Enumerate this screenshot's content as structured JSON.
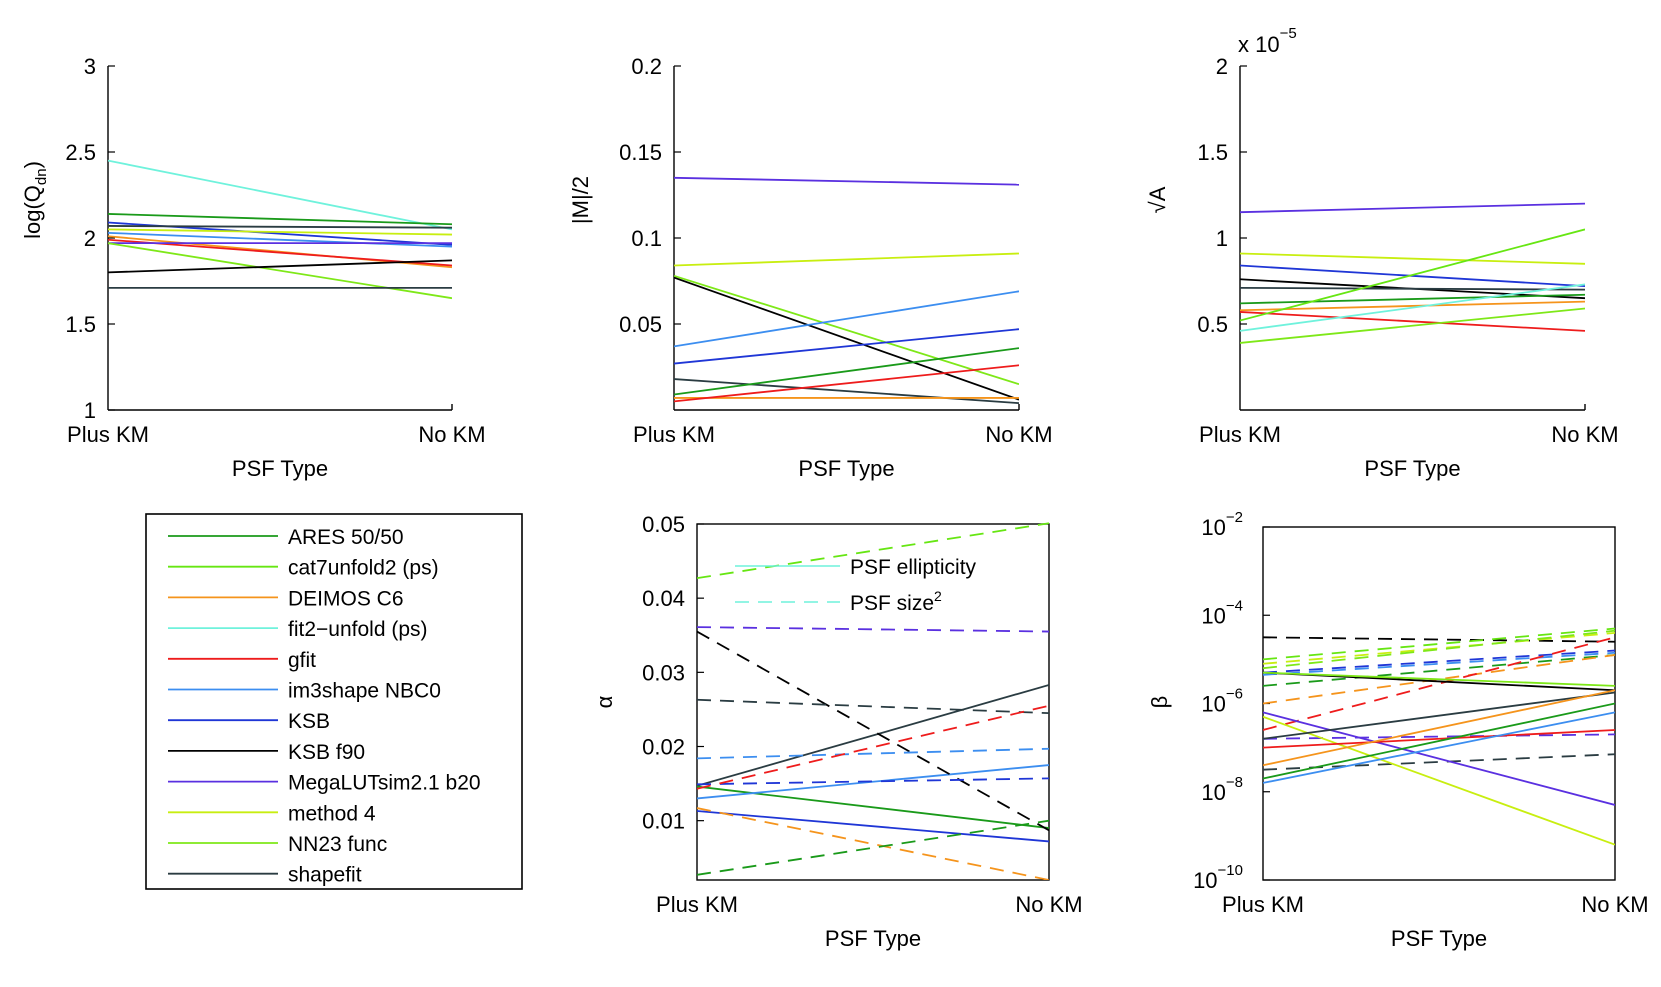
{
  "colors": {
    "ARES 50/50": "#1a9a1a",
    "cat7unfold2 (ps)": "#66e612",
    "DEIMOS C6": "#f5941c",
    "fit2-unfold (ps)": "#6ff2dc",
    "gfit": "#ee1c1c",
    "im3shape NBC0": "#3c8ef0",
    "KSB": "#1f36d6",
    "KSB f90": "#000000",
    "MegaLUTsim2.1 b20": "#5a30e0",
    "method 4": "#c8ee10",
    "NN23 func": "#7ee818",
    "shapefit": "#2a3c42"
  },
  "legend": {
    "entries": [
      "ARES 50/50",
      "cat7unfold2 (ps)",
      "DEIMOS C6",
      "fit2−unfold (ps)",
      "gfit",
      "im3shape NBC0",
      "KSB",
      "KSB f90",
      "MegaLUTsim2.1 b20",
      "method 4",
      "NN23 func",
      "shapefit"
    ],
    "keys": [
      "ARES 50/50",
      "cat7unfold2 (ps)",
      "DEIMOS C6",
      "fit2-unfold (ps)",
      "gfit",
      "im3shape NBC0",
      "KSB",
      "KSB f90",
      "MegaLUTsim2.1 b20",
      "method 4",
      "NN23 func",
      "shapefit"
    ]
  },
  "chart_data": [
    {
      "id": "qdn",
      "type": "line",
      "xlabel": "PSF Type",
      "ylabel_main": "log(Q",
      "ylabel_sub": "dn",
      "ylabel_end": ")",
      "categories": [
        "Plus KM",
        "No KM"
      ],
      "ylim": [
        1,
        3
      ],
      "yticks": [
        1,
        1.5,
        2,
        2.5,
        3
      ],
      "ytick_labels": [
        "1",
        "1.5",
        "2",
        "2.5",
        "3"
      ],
      "series": [
        {
          "name": "fit2-unfold (ps)",
          "values": [
            2.45,
            2.05
          ]
        },
        {
          "name": "ARES 50/50",
          "values": [
            2.14,
            2.08
          ]
        },
        {
          "name": "KSB",
          "values": [
            2.09,
            1.96
          ]
        },
        {
          "name": "shapefit",
          "values": [
            2.07,
            2.06
          ]
        },
        {
          "name": "method 4",
          "values": [
            2.05,
            2.02
          ]
        },
        {
          "name": "im3shape NBC0",
          "values": [
            2.03,
            1.95
          ]
        },
        {
          "name": "DEIMOS C6",
          "values": [
            2.01,
            1.83
          ]
        },
        {
          "name": "gfit",
          "values": [
            1.99,
            1.84
          ]
        },
        {
          "name": "MegaLUTsim2.1 b20",
          "values": [
            1.97,
            1.97
          ]
        },
        {
          "name": "NN23 func",
          "values": [
            1.97,
            1.65
          ]
        },
        {
          "name": "KSB f90",
          "values": [
            1.8,
            1.87
          ]
        },
        {
          "name": "shapefit",
          "values": [
            1.71,
            1.71
          ]
        }
      ]
    },
    {
      "id": "m",
      "type": "line",
      "xlabel": "PSF Type",
      "ylabel_main": "|M|/2",
      "categories": [
        "Plus KM",
        "No KM"
      ],
      "ylim": [
        0,
        0.2
      ],
      "yticks": [
        0.05,
        0.1,
        0.15,
        0.2
      ],
      "ytick_labels": [
        "0.05",
        "0.1",
        "0.15",
        "0.2"
      ],
      "series": [
        {
          "name": "MegaLUTsim2.1 b20",
          "values": [
            0.135,
            0.131
          ]
        },
        {
          "name": "method 4",
          "values": [
            0.084,
            0.091
          ]
        },
        {
          "name": "NN23 func",
          "values": [
            0.078,
            0.015
          ]
        },
        {
          "name": "KSB f90",
          "values": [
            0.077,
            0.006
          ]
        },
        {
          "name": "im3shape NBC0",
          "values": [
            0.037,
            0.069
          ]
        },
        {
          "name": "KSB",
          "values": [
            0.027,
            0.047
          ]
        },
        {
          "name": "shapefit",
          "values": [
            0.018,
            0.004
          ]
        },
        {
          "name": "ARES 50/50",
          "values": [
            0.009,
            0.036
          ]
        },
        {
          "name": "DEIMOS C6",
          "values": [
            0.007,
            0.007
          ]
        },
        {
          "name": "gfit",
          "values": [
            0.005,
            0.026
          ]
        }
      ]
    },
    {
      "id": "a",
      "type": "line",
      "xlabel": "PSF Type",
      "ylabel_main": "√A",
      "exponent_base": "x 10",
      "exponent_power": "−5",
      "categories": [
        "Plus KM",
        "No KM"
      ],
      "ylim": [
        0,
        2
      ],
      "yticks": [
        0.5,
        1,
        1.5,
        2
      ],
      "ytick_labels": [
        "0.5",
        "1",
        "1.5",
        "2"
      ],
      "series": [
        {
          "name": "MegaLUTsim2.1 b20",
          "values": [
            1.15,
            1.2
          ]
        },
        {
          "name": "method 4",
          "values": [
            0.91,
            0.85
          ]
        },
        {
          "name": "KSB",
          "values": [
            0.84,
            0.72
          ]
        },
        {
          "name": "KSB f90",
          "values": [
            0.76,
            0.65
          ]
        },
        {
          "name": "shapefit",
          "values": [
            0.71,
            0.7
          ]
        },
        {
          "name": "ARES 50/50",
          "values": [
            0.62,
            0.67
          ]
        },
        {
          "name": "DEIMOS C6",
          "values": [
            0.58,
            0.63
          ]
        },
        {
          "name": "gfit",
          "values": [
            0.57,
            0.46
          ]
        },
        {
          "name": "cat7unfold2 (ps)",
          "values": [
            0.52,
            1.05
          ]
        },
        {
          "name": "fit2-unfold (ps)",
          "values": [
            0.46,
            0.73
          ]
        },
        {
          "name": "NN23 func",
          "values": [
            0.39,
            0.59
          ]
        }
      ]
    },
    {
      "id": "alpha",
      "type": "line",
      "xlabel": "PSF Type",
      "ylabel_main": "α",
      "categories": [
        "Plus KM",
        "No KM"
      ],
      "ylim": [
        0.002,
        0.05
      ],
      "yticks": [
        0.01,
        0.02,
        0.03,
        0.04,
        0.05
      ],
      "ytick_labels": [
        "0.01",
        "0.02",
        "0.03",
        "0.04",
        "0.05"
      ],
      "inner_legend": {
        "ellipticity_label": "PSF ellipticity",
        "size_label": "PSF size",
        "size_superscript": "2"
      },
      "series": [
        {
          "name": "shapefit",
          "style": "solid",
          "values": [
            0.0147,
            0.0283
          ]
        },
        {
          "name": "ARES 50/50",
          "style": "solid",
          "values": [
            0.0146,
            0.009
          ]
        },
        {
          "name": "im3shape NBC0",
          "style": "solid",
          "values": [
            0.013,
            0.0175
          ]
        },
        {
          "name": "KSB",
          "style": "solid",
          "values": [
            0.0113,
            0.0072
          ]
        },
        {
          "name": "cat7unfold2 (ps)",
          "style": "dashed",
          "values": [
            0.0427,
            0.0501
          ]
        },
        {
          "name": "MegaLUTsim2.1 b20",
          "style": "dashed",
          "values": [
            0.0361,
            0.0355
          ]
        },
        {
          "name": "KSB f90",
          "style": "dashed",
          "values": [
            0.0355,
            0.0087
          ]
        },
        {
          "name": "shapefit",
          "style": "dashed",
          "values": [
            0.0263,
            0.0245
          ]
        },
        {
          "name": "im3shape NBC0",
          "style": "dashed",
          "values": [
            0.0184,
            0.0197
          ]
        },
        {
          "name": "KSB",
          "style": "dashed",
          "values": [
            0.0149,
            0.0157
          ]
        },
        {
          "name": "gfit",
          "style": "dashed",
          "values": [
            0.0143,
            0.0255
          ]
        },
        {
          "name": "DEIMOS C6",
          "style": "dashed",
          "values": [
            0.0117,
            0.002
          ]
        },
        {
          "name": "ARES 50/50",
          "style": "dashed",
          "values": [
            0.0027,
            0.01
          ]
        }
      ]
    },
    {
      "id": "beta",
      "type": "line",
      "yscale": "log",
      "xlabel": "PSF Type",
      "ylabel_main": "β",
      "categories": [
        "Plus KM",
        "No KM"
      ],
      "ylim_log10": [
        -10,
        -2
      ],
      "yticks_log10": [
        -10,
        -8,
        -6,
        -4,
        -2
      ],
      "ytick_base": "10",
      "ytick_powers": [
        "−10",
        "−8",
        "−6",
        "−4",
        "−2"
      ],
      "series": [
        {
          "name": "KSB f90",
          "style": "dashed",
          "log10_values": [
            -4.5,
            -4.6
          ]
        },
        {
          "name": "cat7unfold2 (ps)",
          "style": "dashed",
          "log10_values": [
            -5.0,
            -4.3
          ]
        },
        {
          "name": "method 4",
          "style": "dashed",
          "log10_values": [
            -5.1,
            -4.4
          ]
        },
        {
          "name": "NN23 func",
          "style": "dashed",
          "log10_values": [
            -5.2,
            -4.35
          ]
        },
        {
          "name": "KSB",
          "style": "dashed",
          "log10_values": [
            -5.3,
            -4.8
          ]
        },
        {
          "name": "im3shape NBC0",
          "style": "dashed",
          "log10_values": [
            -5.35,
            -4.85
          ]
        },
        {
          "name": "ARES 50/50",
          "style": "dashed",
          "log10_values": [
            -5.6,
            -4.9
          ]
        },
        {
          "name": "DEIMOS C6",
          "style": "dashed",
          "log10_values": [
            -6.0,
            -4.9
          ]
        },
        {
          "name": "gfit",
          "style": "dashed",
          "log10_values": [
            -6.6,
            -4.5
          ]
        },
        {
          "name": "MegaLUTsim2.1 b20",
          "style": "dashed",
          "log10_values": [
            -6.8,
            -6.7
          ]
        },
        {
          "name": "shapefit",
          "style": "dashed",
          "log10_values": [
            -7.5,
            -7.15
          ]
        },
        {
          "name": "KSB f90",
          "style": "solid",
          "log10_values": [
            -5.3,
            -5.7
          ]
        },
        {
          "name": "NN23 func",
          "style": "solid",
          "log10_values": [
            -5.3,
            -5.6
          ]
        },
        {
          "name": "MegaLUTsim2.1 b20",
          "style": "solid",
          "log10_values": [
            -6.2,
            -8.3
          ]
        },
        {
          "name": "method 4",
          "style": "solid",
          "log10_values": [
            -6.3,
            -9.2
          ]
        },
        {
          "name": "shapefit",
          "style": "solid",
          "log10_values": [
            -6.8,
            -5.75
          ]
        },
        {
          "name": "gfit",
          "style": "solid",
          "log10_values": [
            -7.0,
            -6.6
          ]
        },
        {
          "name": "DEIMOS C6",
          "style": "solid",
          "log10_values": [
            -7.4,
            -5.7
          ]
        },
        {
          "name": "ARES 50/50",
          "style": "solid",
          "log10_values": [
            -7.7,
            -6.0
          ]
        },
        {
          "name": "im3shape NBC0",
          "style": "solid",
          "log10_values": [
            -7.8,
            -6.2
          ]
        }
      ]
    }
  ]
}
